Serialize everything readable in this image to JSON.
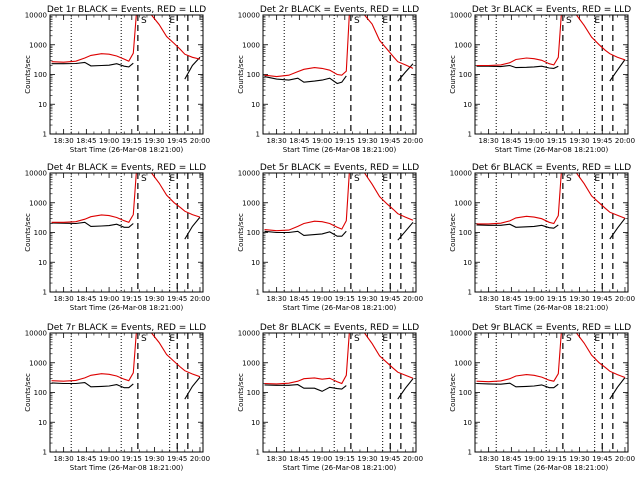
{
  "chart_data": {
    "type": "line",
    "layout": "3x3 grid of time-series panels",
    "yscale": "log",
    "ylim": [
      1,
      10000
    ],
    "yticks": [
      "1",
      "10",
      "100",
      "1000",
      "10000"
    ],
    "ylabel": "Counts/sec",
    "xlabel": "Start Time (26-Mar-08 18:21:00)",
    "xlim": [
      "18:21",
      "20:02"
    ],
    "xticks": [
      "18:30",
      "18:45",
      "19:00",
      "19:15",
      "19:30",
      "19:45",
      "20:00"
    ],
    "colors": {
      "events": "#000000",
      "lld": "#dd0000"
    },
    "marker_letters": [
      "S",
      "E"
    ],
    "panels": [
      {
        "title": "Det 1r BLACK = Events, RED = LLD",
        "x": [
          "18:22",
          "18:30",
          "18:38",
          "18:44",
          "18:48",
          "18:55",
          "19:00",
          "19:05",
          "19:10",
          "19:13",
          "19:16",
          "19:18",
          "19:24",
          "19:28",
          "19:33",
          "19:38",
          "19:43",
          "19:47",
          "19:50",
          "19:55",
          "20:00"
        ],
        "events": [
          230,
          230,
          235,
          255,
          195,
          200,
          205,
          230,
          190,
          180,
          240,
          null,
          null,
          null,
          null,
          null,
          null,
          null,
          70,
          200,
          380
        ],
        "lld": [
          270,
          260,
          280,
          360,
          440,
          500,
          480,
          420,
          330,
          280,
          520,
          10000,
          10000,
          10000,
          4800,
          1900,
          1100,
          700,
          480,
          380,
          330
        ],
        "dotted": [
          "18:35",
          "19:08",
          "19:40"
        ],
        "dashed": [
          "19:19",
          "19:45",
          "19:52"
        ]
      },
      {
        "title": "Det 2r BLACK = Events, RED = LLD",
        "x": [
          "18:22",
          "18:30",
          "18:38",
          "18:44",
          "18:48",
          "18:55",
          "19:00",
          "19:05",
          "19:10",
          "19:13",
          "19:16",
          "19:18",
          "19:24",
          "19:28",
          "19:33",
          "19:38",
          "19:43",
          "19:47",
          "19:50",
          "19:55",
          "20:00"
        ],
        "events": [
          85,
          70,
          65,
          75,
          55,
          60,
          65,
          75,
          50,
          55,
          90,
          null,
          null,
          null,
          null,
          null,
          null,
          null,
          60,
          120,
          230
        ],
        "lld": [
          95,
          85,
          95,
          125,
          150,
          170,
          160,
          140,
          100,
          95,
          130,
          10000,
          10000,
          10000,
          5000,
          1400,
          700,
          400,
          270,
          210,
          160
        ],
        "dotted": [
          "18:35",
          "19:08",
          "19:40"
        ],
        "dashed": [
          "19:19",
          "19:45",
          "19:52"
        ]
      },
      {
        "title": "Det 3r BLACK = Events, RED = LLD",
        "x": [
          "18:22",
          "18:30",
          "18:38",
          "18:44",
          "18:48",
          "18:55",
          "19:00",
          "19:05",
          "19:10",
          "19:13",
          "19:16",
          "19:18",
          "19:24",
          "19:28",
          "19:33",
          "19:38",
          "19:43",
          "19:47",
          "19:50",
          "19:55",
          "20:00"
        ],
        "events": [
          190,
          190,
          185,
          200,
          170,
          175,
          180,
          190,
          165,
          160,
          190,
          null,
          null,
          null,
          null,
          null,
          null,
          null,
          60,
          140,
          320
        ],
        "lld": [
          200,
          200,
          210,
          250,
          320,
          360,
          340,
          300,
          230,
          210,
          380,
          10000,
          10000,
          10000,
          4500,
          1800,
          1000,
          650,
          500,
          380,
          310
        ],
        "dotted": [
          "18:35",
          "19:08",
          "19:40"
        ],
        "dashed": [
          "19:19",
          "19:45",
          "19:52"
        ]
      },
      {
        "title": "Det 4r BLACK = Events, RED = LLD",
        "x": [
          "18:22",
          "18:30",
          "18:38",
          "18:44",
          "18:48",
          "18:55",
          "19:00",
          "19:05",
          "19:10",
          "19:13",
          "19:16",
          "19:18",
          "19:24",
          "19:28",
          "19:33",
          "19:38",
          "19:43",
          "19:47",
          "19:50",
          "19:55",
          "20:00"
        ],
        "events": [
          210,
          205,
          200,
          220,
          160,
          165,
          170,
          190,
          150,
          150,
          200,
          null,
          null,
          null,
          null,
          null,
          null,
          null,
          60,
          160,
          330
        ],
        "lld": [
          220,
          220,
          230,
          280,
          340,
          390,
          370,
          320,
          250,
          220,
          400,
          10000,
          10000,
          10000,
          4600,
          1800,
          1000,
          700,
          520,
          400,
          330
        ],
        "dotted": [
          "18:35",
          "19:08",
          "19:40"
        ],
        "dashed": [
          "19:19",
          "19:45",
          "19:52"
        ]
      },
      {
        "title": "Det 5r BLACK = Events, RED = LLD",
        "x": [
          "18:22",
          "18:30",
          "18:38",
          "18:44",
          "18:48",
          "18:55",
          "19:00",
          "19:05",
          "19:10",
          "19:13",
          "19:16",
          "19:18",
          "19:24",
          "19:28",
          "19:33",
          "19:38",
          "19:43",
          "19:47",
          "19:50",
          "19:55",
          "20:00"
        ],
        "events": [
          110,
          100,
          100,
          110,
          80,
          85,
          90,
          105,
          75,
          75,
          110,
          null,
          null,
          null,
          null,
          null,
          null,
          null,
          55,
          110,
          220
        ],
        "lld": [
          125,
          115,
          120,
          160,
          200,
          240,
          230,
          200,
          150,
          130,
          250,
          10000,
          10000,
          10000,
          4200,
          1600,
          900,
          600,
          430,
          330,
          260
        ],
        "dotted": [
          "18:35",
          "19:08",
          "19:40"
        ],
        "dashed": [
          "19:19",
          "19:45",
          "19:52"
        ]
      },
      {
        "title": "Det 6r BLACK = Events, RED = LLD",
        "x": [
          "18:22",
          "18:30",
          "18:38",
          "18:44",
          "18:48",
          "18:55",
          "19:00",
          "19:05",
          "19:10",
          "19:13",
          "19:16",
          "19:18",
          "19:24",
          "19:28",
          "19:33",
          "19:38",
          "19:43",
          "19:47",
          "19:50",
          "19:55",
          "20:00"
        ],
        "events": [
          180,
          175,
          175,
          190,
          150,
          155,
          160,
          175,
          145,
          140,
          180,
          null,
          null,
          null,
          null,
          null,
          null,
          null,
          60,
          140,
          300
        ],
        "lld": [
          195,
          195,
          205,
          245,
          310,
          350,
          330,
          290,
          220,
          200,
          370,
          10000,
          10000,
          10000,
          4400,
          1700,
          1000,
          650,
          480,
          380,
          300
        ],
        "dotted": [
          "18:35",
          "19:08",
          "19:40"
        ],
        "dashed": [
          "19:19",
          "19:45",
          "19:52"
        ]
      },
      {
        "title": "Det 7r BLACK = Events, RED = LLD",
        "x": [
          "18:22",
          "18:30",
          "18:38",
          "18:44",
          "18:48",
          "18:55",
          "19:00",
          "19:05",
          "19:10",
          "19:13",
          "19:16",
          "19:18",
          "19:24",
          "19:28",
          "19:33",
          "19:38",
          "19:43",
          "19:47",
          "19:50",
          "19:55",
          "20:00"
        ],
        "events": [
          210,
          200,
          200,
          215,
          155,
          160,
          165,
          185,
          145,
          145,
          195,
          null,
          null,
          null,
          null,
          null,
          null,
          null,
          60,
          160,
          330
        ],
        "lld": [
          250,
          240,
          255,
          310,
          380,
          430,
          410,
          360,
          280,
          250,
          460,
          10000,
          10000,
          10000,
          4800,
          1900,
          1100,
          720,
          540,
          420,
          340
        ],
        "dotted": [
          "18:35",
          "19:08",
          "19:40"
        ],
        "dashed": [
          "19:19",
          "19:45",
          "19:52"
        ]
      },
      {
        "title": "Det 8r BLACK = Events, RED = LLD",
        "x": [
          "18:22",
          "18:30",
          "18:38",
          "18:44",
          "18:48",
          "18:55",
          "19:00",
          "19:05",
          "19:10",
          "19:13",
          "19:16",
          "19:18",
          "19:24",
          "19:28",
          "19:33",
          "19:38",
          "19:43",
          "19:47",
          "19:50",
          "19:55",
          "20:00"
        ],
        "events": [
          180,
          175,
          175,
          185,
          140,
          140,
          110,
          150,
          135,
          130,
          170,
          null,
          null,
          null,
          null,
          null,
          null,
          null,
          60,
          140,
          290
        ],
        "lld": [
          200,
          195,
          205,
          240,
          290,
          310,
          280,
          300,
          230,
          200,
          380,
          10000,
          10000,
          10000,
          4400,
          1700,
          1000,
          650,
          480,
          380,
          300
        ],
        "dotted": [
          "18:35",
          "19:08",
          "19:40"
        ],
        "dashed": [
          "19:19",
          "19:45",
          "19:52"
        ]
      },
      {
        "title": "Det 9r BLACK = Events, RED = LLD",
        "x": [
          "18:22",
          "18:30",
          "18:38",
          "18:44",
          "18:48",
          "18:55",
          "19:00",
          "19:05",
          "19:10",
          "19:13",
          "19:16",
          "19:18",
          "19:24",
          "19:28",
          "19:33",
          "19:38",
          "19:43",
          "19:47",
          "19:50",
          "19:55",
          "20:00"
        ],
        "events": [
          200,
          195,
          190,
          205,
          155,
          160,
          165,
          180,
          145,
          145,
          190,
          null,
          null,
          null,
          null,
          null,
          null,
          null,
          60,
          150,
          320
        ],
        "lld": [
          240,
          230,
          245,
          290,
          360,
          400,
          380,
          330,
          260,
          240,
          430,
          10000,
          10000,
          10000,
          4600,
          1800,
          1000,
          700,
          520,
          400,
          320
        ],
        "dotted": [
          "18:35",
          "19:08",
          "19:40"
        ],
        "dashed": [
          "19:19",
          "19:45",
          "19:52"
        ]
      }
    ]
  }
}
